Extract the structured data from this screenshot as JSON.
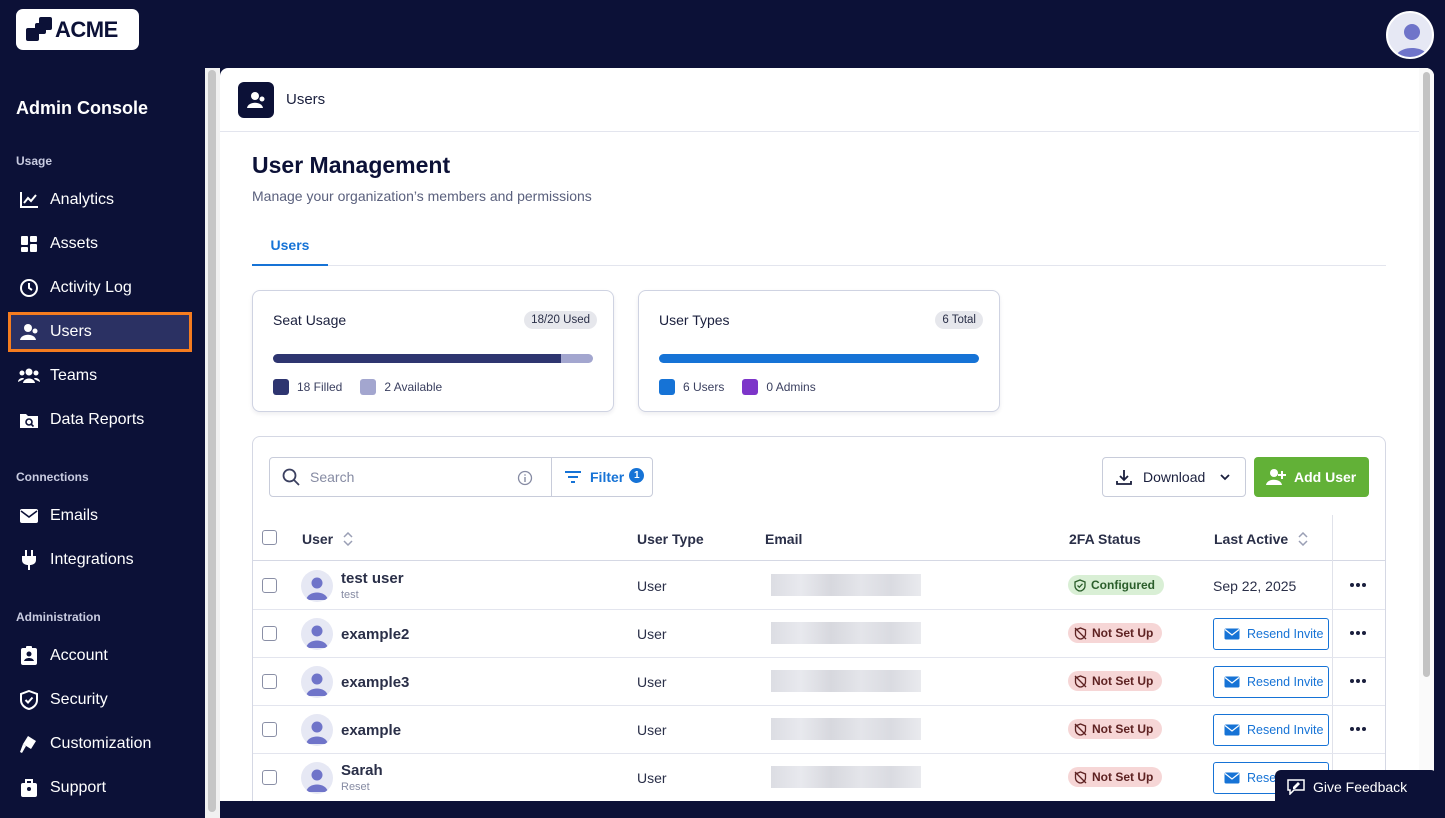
{
  "brand": {
    "logo_text": "ACME",
    "dark": "#0c1137",
    "accent": "#1673d6",
    "highlight": "#f57c1f"
  },
  "sidebar": {
    "title": "Admin Console",
    "sections": [
      {
        "label": "Usage",
        "items": [
          {
            "label": "Analytics",
            "icon": "chart-line-icon"
          },
          {
            "label": "Assets",
            "icon": "grid-icon"
          },
          {
            "label": "Activity Log",
            "icon": "history-icon"
          },
          {
            "label": "Users",
            "icon": "user-icon",
            "active": true
          },
          {
            "label": "Teams",
            "icon": "users-group-icon"
          },
          {
            "label": "Data Reports",
            "icon": "folder-search-icon"
          }
        ]
      },
      {
        "label": "Connections",
        "items": [
          {
            "label": "Emails",
            "icon": "envelope-icon"
          },
          {
            "label": "Integrations",
            "icon": "plug-icon"
          }
        ]
      },
      {
        "label": "Administration",
        "items": [
          {
            "label": "Account",
            "icon": "account-icon"
          },
          {
            "label": "Security",
            "icon": "shield-icon"
          },
          {
            "label": "Customization",
            "icon": "paint-roller-icon"
          },
          {
            "label": "Support",
            "icon": "support-icon"
          }
        ]
      }
    ]
  },
  "header": {
    "title": "Users"
  },
  "page": {
    "title": "User Management",
    "subtitle": "Manage your organization’s members and permissions",
    "tabs": [
      {
        "label": "Users",
        "active": true
      }
    ]
  },
  "cards": {
    "seat_usage": {
      "title": "Seat Usage",
      "badge": "18/20 Used",
      "filled": 18,
      "available": 2,
      "filled_label": "18 Filled",
      "available_label": "2 Available",
      "filled_color": "#2e3570",
      "available_color": "#a3a6cf"
    },
    "user_types": {
      "title": "User Types",
      "badge": "6 Total",
      "users": 6,
      "admins": 0,
      "users_label": "6 Users",
      "admins_label": "0 Admins",
      "users_color": "#1673d6",
      "admins_color": "#7d35c9"
    }
  },
  "toolbar": {
    "search_placeholder": "Search",
    "filter_label": "Filter",
    "filter_count": "1",
    "download_label": "Download",
    "add_label": "Add User"
  },
  "table": {
    "columns": {
      "user": "User",
      "user_type": "User Type",
      "email": "Email",
      "twofa": "2FA Status",
      "last_active": "Last Active"
    },
    "rows": [
      {
        "name": "test user",
        "sub": "test",
        "type": "User",
        "twofa": "Configured",
        "twofa_ok": true,
        "last_active": "Sep 22, 2025",
        "action": ""
      },
      {
        "name": "example2",
        "sub": "",
        "type": "User",
        "twofa": "Not Set Up",
        "twofa_ok": false,
        "last_active": "",
        "action": "Resend Invite"
      },
      {
        "name": "example3",
        "sub": "",
        "type": "User",
        "twofa": "Not Set Up",
        "twofa_ok": false,
        "last_active": "",
        "action": "Resend Invite"
      },
      {
        "name": "example",
        "sub": "",
        "type": "User",
        "twofa": "Not Set Up",
        "twofa_ok": false,
        "last_active": "",
        "action": "Resend Invite"
      },
      {
        "name": "Sarah",
        "sub": "Reset",
        "type": "User",
        "twofa": "Not Set Up",
        "twofa_ok": false,
        "last_active": "",
        "action": "Resend Invite"
      }
    ]
  },
  "feedback": {
    "label": "Give Feedback"
  }
}
